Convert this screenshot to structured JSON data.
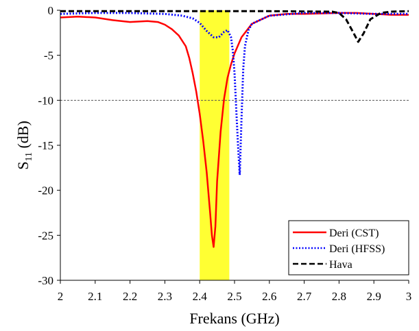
{
  "chart_data": {
    "type": "line",
    "title": "",
    "xlabel": "Frekans (GHz)",
    "ylabel": {
      "prefix": "S",
      "subscript": "11",
      "suffix": " (dB)"
    },
    "xlim": [
      2,
      3
    ],
    "ylim": [
      -30,
      0
    ],
    "xticks": [
      "2",
      "2.1",
      "2.2",
      "2.3",
      "2.4",
      "2.5",
      "2.6",
      "2.7",
      "2.8",
      "2.9",
      "3"
    ],
    "yticks": [
      "0",
      "-5",
      "-10",
      "-15",
      "-20",
      "-25",
      "-30"
    ],
    "reference_line": {
      "y": -10,
      "style": "dotted",
      "color": "#555555"
    },
    "highlight_band": {
      "x": [
        2.4,
        2.485
      ],
      "color": "#ffff33"
    },
    "legend": {
      "position": "bottom-right"
    },
    "series": [
      {
        "name": "Deri (CST)",
        "color": "#ff0000",
        "style": "solid",
        "x": [
          2.0,
          2.05,
          2.1,
          2.15,
          2.2,
          2.25,
          2.28,
          2.3,
          2.32,
          2.34,
          2.36,
          2.37,
          2.38,
          2.39,
          2.4,
          2.41,
          2.42,
          2.43,
          2.435,
          2.44,
          2.445,
          2.45,
          2.46,
          2.47,
          2.48,
          2.49,
          2.5,
          2.52,
          2.55,
          2.6,
          2.65,
          2.7,
          2.75,
          2.8,
          2.85,
          2.9,
          2.95,
          3.0
        ],
        "y": [
          -0.8,
          -0.7,
          -0.8,
          -1.1,
          -1.3,
          -1.2,
          -1.3,
          -1.6,
          -2.1,
          -2.8,
          -4.0,
          -5.3,
          -7.0,
          -9.0,
          -11.5,
          -14.5,
          -18.0,
          -22.5,
          -25.0,
          -26.3,
          -24.0,
          -19.0,
          -13.5,
          -9.8,
          -7.5,
          -6.0,
          -4.8,
          -3.0,
          -1.5,
          -0.6,
          -0.4,
          -0.4,
          -0.35,
          -0.3,
          -0.3,
          -0.4,
          -0.5,
          -0.5
        ]
      },
      {
        "name": "Deri (HFSS)",
        "color": "#0000ff",
        "style": "dotted",
        "x": [
          2.0,
          2.1,
          2.2,
          2.3,
          2.35,
          2.38,
          2.4,
          2.42,
          2.44,
          2.455,
          2.47,
          2.48,
          2.49,
          2.495,
          2.5,
          2.505,
          2.51,
          2.515,
          2.52,
          2.525,
          2.53,
          2.54,
          2.55,
          2.6,
          2.7,
          2.8,
          2.9,
          3.0
        ],
        "y": [
          -0.4,
          -0.3,
          -0.3,
          -0.4,
          -0.6,
          -0.9,
          -1.4,
          -2.3,
          -3.0,
          -3.0,
          -2.4,
          -2.2,
          -3.0,
          -4.5,
          -7.0,
          -11.0,
          -15.0,
          -18.3,
          -12.0,
          -6.5,
          -4.0,
          -2.2,
          -1.5,
          -0.6,
          -0.3,
          -0.3,
          -0.4,
          -0.4
        ]
      },
      {
        "name": "Hava",
        "color": "#000000",
        "style": "dashed",
        "x": [
          2.0,
          2.2,
          2.4,
          2.6,
          2.78,
          2.8,
          2.82,
          2.84,
          2.855,
          2.87,
          2.89,
          2.92,
          2.95,
          3.0
        ],
        "y": [
          -0.1,
          -0.1,
          -0.1,
          -0.1,
          -0.15,
          -0.3,
          -1.0,
          -2.4,
          -3.5,
          -2.6,
          -1.0,
          -0.3,
          -0.15,
          -0.1
        ]
      }
    ]
  }
}
